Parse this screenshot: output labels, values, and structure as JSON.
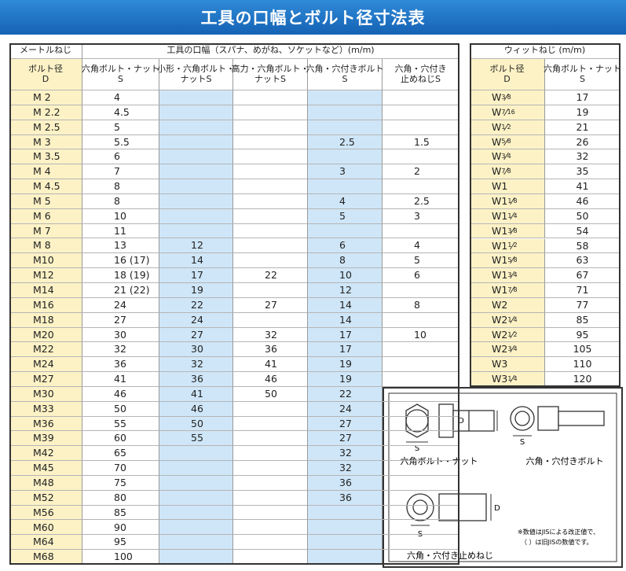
{
  "header": {
    "title": "工具の口幅とボルト径寸法表"
  },
  "metric_table": {
    "group_headers": [
      "メートルねじ",
      "工具の口幅（スパナ、めがね、ソケットなど）(m/m)"
    ],
    "columns": [
      [
        "ボルト径",
        "D"
      ],
      [
        "六角ボルト・ナット",
        "S"
      ],
      [
        "小形・六角ボルト・",
        "ナットS"
      ],
      [
        "高力・六角ボルト・",
        "ナットS"
      ],
      [
        "六角・穴付きボルト",
        "S"
      ],
      [
        "六角・穴付き",
        "止めねじS"
      ]
    ],
    "rows": [
      [
        "M 2",
        "4",
        null,
        null,
        null,
        null
      ],
      [
        "M 2.2",
        "4.5",
        null,
        null,
        null,
        null
      ],
      [
        "M 2.5",
        "5",
        null,
        null,
        null,
        null
      ],
      [
        "M 3",
        "5.5",
        null,
        null,
        "2.5",
        "1.5"
      ],
      [
        "M 3.5",
        "6",
        null,
        null,
        null,
        null
      ],
      [
        "M 4",
        "7",
        null,
        null,
        "3",
        "2"
      ],
      [
        "M 4.5",
        "8",
        null,
        null,
        null,
        null
      ],
      [
        "M 5",
        "8",
        null,
        null,
        "4",
        "2.5"
      ],
      [
        "M 6",
        "10",
        null,
        null,
        "5",
        "3"
      ],
      [
        "M 7",
        "11",
        null,
        null,
        null,
        null
      ],
      [
        "M 8",
        "13",
        "12",
        null,
        "6",
        "4"
      ],
      [
        "M10",
        "16 (17)",
        "14",
        null,
        "8",
        "5"
      ],
      [
        "M12",
        "18 (19)",
        "17",
        "22",
        "10",
        "6"
      ],
      [
        "M14",
        "21 (22)",
        "19",
        null,
        "12",
        null
      ],
      [
        "M16",
        "24",
        "22",
        "27",
        "14",
        "8"
      ],
      [
        "M18",
        "27",
        "24",
        null,
        "14",
        null
      ],
      [
        "M20",
        "30",
        "27",
        "32",
        "17",
        "10"
      ],
      [
        "M22",
        "32",
        "30",
        "36",
        "17",
        null
      ],
      [
        "M24",
        "36",
        "32",
        "41",
        "19",
        null
      ],
      [
        "M27",
        "41",
        "36",
        "46",
        "19",
        null
      ],
      [
        "M30",
        "46",
        "41",
        "50",
        "22",
        null
      ],
      [
        "M33",
        "50",
        "46",
        null,
        "24",
        null
      ],
      [
        "M36",
        "55",
        "50",
        null,
        "27",
        null
      ],
      [
        "M39",
        "60",
        "55",
        null,
        "27",
        null
      ],
      [
        "M42",
        "65",
        null,
        null,
        "32",
        null
      ],
      [
        "M45",
        "70",
        null,
        null,
        "32",
        null
      ],
      [
        "M48",
        "75",
        null,
        null,
        "36",
        null
      ],
      [
        "M52",
        "80",
        null,
        null,
        "36",
        null
      ],
      [
        "M56",
        "85",
        null,
        null,
        null,
        null
      ],
      [
        "M60",
        "90",
        null,
        null,
        null,
        null
      ],
      [
        "M64",
        "95",
        null,
        null,
        null,
        null
      ],
      [
        "M68",
        "100",
        null,
        null,
        null,
        null
      ]
    ]
  },
  "whit_table": {
    "group_header": "ウィットねじ (m/m)",
    "columns": [
      [
        "ボルト径",
        "D"
      ],
      [
        "六角ボルト・ナット",
        "S"
      ]
    ],
    "rows": [
      [
        {
          "base": "W ",
          "num": "3",
          "den": "8"
        },
        "17"
      ],
      [
        {
          "base": "W ",
          "num": "7",
          "den": "16"
        },
        "19"
      ],
      [
        {
          "base": "W ",
          "num": "1",
          "den": "2"
        },
        "21"
      ],
      [
        {
          "base": "W ",
          "num": "5",
          "den": "8"
        },
        "26"
      ],
      [
        {
          "base": "W ",
          "num": "3",
          "den": "4"
        },
        "32"
      ],
      [
        {
          "base": "W ",
          "num": "7",
          "den": "8"
        },
        "35"
      ],
      [
        {
          "base": "W1"
        },
        "41"
      ],
      [
        {
          "base": "W1",
          "num": "1",
          "den": "8"
        },
        "46"
      ],
      [
        {
          "base": "W1",
          "num": "1",
          "den": "4"
        },
        "50"
      ],
      [
        {
          "base": "W1",
          "num": "3",
          "den": "8"
        },
        "54"
      ],
      [
        {
          "base": "W1",
          "num": "1",
          "den": "2"
        },
        "58"
      ],
      [
        {
          "base": "W1",
          "num": "5",
          "den": "8"
        },
        "63"
      ],
      [
        {
          "base": "W1",
          "num": "3",
          "den": "4"
        },
        "67"
      ],
      [
        {
          "base": "W1",
          "num": "7",
          "den": "8"
        },
        "71"
      ],
      [
        {
          "base": "W2"
        },
        "77"
      ],
      [
        {
          "base": "W2",
          "num": "1",
          "den": "4"
        },
        "85"
      ],
      [
        {
          "base": "W2",
          "num": "1",
          "den": "2"
        },
        "95"
      ],
      [
        {
          "base": "W2",
          "num": "3",
          "den": "4"
        },
        "105"
      ],
      [
        {
          "base": "W3"
        },
        "110"
      ],
      [
        {
          "base": "W3",
          "num": "1",
          "den": "4"
        },
        "120"
      ]
    ]
  },
  "diagram": {
    "labels": [
      "六角ボルト・ナット",
      "六角・穴付きボルト",
      "六角・穴付き止めねじ"
    ],
    "symbols": [
      "S",
      "D"
    ],
    "notes": [
      "※数値はJISによる改正値で、",
      "（ ）は旧JISの数値です。"
    ]
  }
}
